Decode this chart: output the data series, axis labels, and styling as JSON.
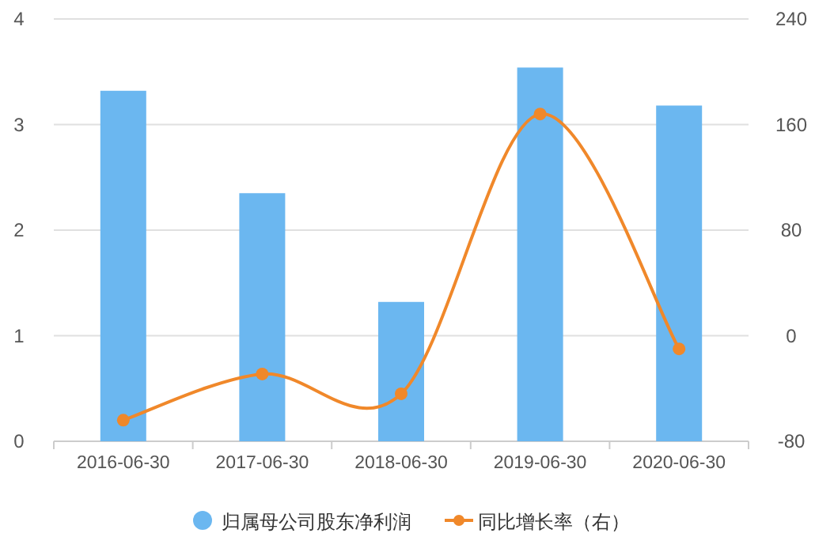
{
  "chart_data": {
    "type": "bar",
    "categories": [
      "2016-06-30",
      "2017-06-30",
      "2018-06-30",
      "2019-06-30",
      "2020-06-30"
    ],
    "series": [
      {
        "name": "归属母公司股东净利润",
        "color": "#6bb7f0",
        "values": [
          3.32,
          2.35,
          1.32,
          3.54,
          3.18
        ]
      },
      {
        "name": "同比增长率（右）",
        "type": "line",
        "axis": "y2",
        "color": "#f0882a",
        "marker": "circle",
        "values": [
          -64,
          -29,
          -44,
          168,
          -10
        ]
      }
    ],
    "ylim": [
      0,
      4
    ],
    "yticks": [
      0,
      1,
      2,
      3,
      4
    ],
    "y2lim": [
      -80,
      240
    ],
    "y2ticks": [
      -80,
      0,
      80,
      160,
      240
    ],
    "grid": "y",
    "legend": "bottom"
  }
}
